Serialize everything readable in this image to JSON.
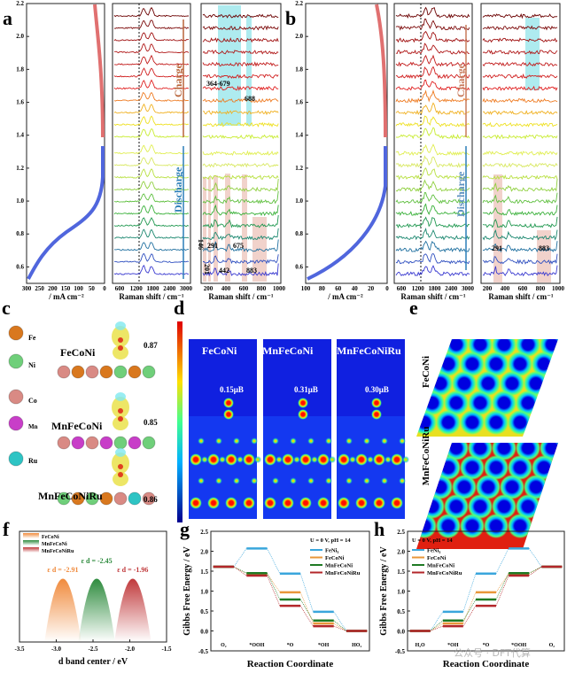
{
  "panels": {
    "a": {
      "label": "a",
      "current_ticks": [
        "300",
        "250",
        "200",
        "150",
        "100",
        "50",
        "0"
      ],
      "current_label": "/ mA cm⁻²",
      "raman1_ticks": [
        "600",
        "1200",
        "1800",
        "2400",
        "3000"
      ],
      "raman2_ticks": [
        "200",
        "400",
        "600",
        "800",
        "1000"
      ],
      "raman_label": "Raman shift / cm⁻¹",
      "charge": "Charge",
      "discharge": "Discharge",
      "peaks": [
        "364-679",
        "688",
        "146",
        "291",
        "675",
        "201",
        "442",
        "883"
      ]
    },
    "b": {
      "label": "b",
      "current_ticks": [
        "100",
        "80",
        "60",
        "40",
        "20",
        "0"
      ],
      "current_label": "/ mA cm⁻²",
      "raman1_ticks": [
        "600",
        "1200",
        "1800",
        "2400",
        "3000"
      ],
      "raman2_ticks": [
        "200",
        "400",
        "600",
        "800",
        "1000"
      ],
      "raman_label": "Raman shift / cm⁻¹",
      "charge": "Charge",
      "discharge": "Discharge",
      "peaks": [
        "291",
        "883"
      ]
    },
    "voltage_ticks": [
      "2.2",
      "2.0",
      "1.8",
      "1.6",
      "1.4",
      "1.2",
      "1.0",
      "0.8",
      "0.6"
    ],
    "c": {
      "label": "c",
      "legend": [
        "Fe",
        "Ni",
        "Co",
        "Mn",
        "Ru"
      ],
      "legend_colors": [
        "#d9781e",
        "#6fcf7a",
        "#d98a84",
        "#c83ec8",
        "#2ec4c4"
      ],
      "structures": [
        {
          "name": "FeCoNi",
          "value": "0.87"
        },
        {
          "name": "MnFeCoNi",
          "value": "0.85"
        },
        {
          "name": "MnFeCoNiRu",
          "value": "0.86"
        }
      ]
    },
    "d": {
      "label": "d",
      "maps": [
        {
          "name": "FeCoNi",
          "moment": "0.15μB"
        },
        {
          "name": "MnFeCoNi",
          "moment": "0.31μB"
        },
        {
          "name": "MnFeCoNiRu",
          "moment": "0.30μB"
        }
      ]
    },
    "e": {
      "label": "e",
      "maps": [
        "FeCoNi",
        "MnFeCoNiRu"
      ]
    }
  },
  "chart_data": [
    {
      "panel": "f",
      "label": "f",
      "type": "area",
      "xlabel": "d band center / eV",
      "xlim": [
        -3.5,
        -1.5
      ],
      "xticks": [
        "-3.5",
        "-3.0",
        "-2.5",
        "-2.0",
        "-1.5"
      ],
      "series": [
        {
          "name": "FeCoNi",
          "center": -2.91,
          "annotation": "ε d = -2.91",
          "color": "#f08a3c"
        },
        {
          "name": "MnFeCoNi",
          "center": -2.45,
          "annotation": "ε d = -2.45",
          "color": "#2e8b3e"
        },
        {
          "name": "MnFeCoNiRu",
          "center": -1.96,
          "annotation": "ε d = -1.96",
          "color": "#c0393b"
        }
      ],
      "legend": "top-left"
    },
    {
      "panel": "g",
      "label": "g",
      "type": "line",
      "title": "U = 0 V, pH = 14",
      "xlabel": "Reaction Coordinate",
      "ylabel": "Gibbs Free Energy / eV",
      "ylim": [
        -0.5,
        2.5
      ],
      "yticks": [
        "2.5",
        "2.0",
        "1.5",
        "1.0",
        "0.5",
        "0.0",
        "-0.5"
      ],
      "categories": [
        "O₂",
        "*OOH",
        "*O",
        "*OH",
        "HO₂"
      ],
      "series": [
        {
          "name": "FeNi₃",
          "values": [
            1.61,
            2.07,
            1.44,
            0.48,
            0
          ],
          "color": "#3aa6dc"
        },
        {
          "name": "FeCoNi",
          "values": [
            1.61,
            1.44,
            0.97,
            0.19,
            0
          ],
          "color": "#e8973a"
        },
        {
          "name": "MnFeCoNi",
          "values": [
            1.61,
            1.45,
            0.79,
            0.26,
            0
          ],
          "color": "#1f7a24"
        },
        {
          "name": "MnFeCoNiRu",
          "values": [
            1.61,
            1.39,
            0.63,
            0.12,
            0
          ],
          "color": "#b3262a"
        }
      ],
      "legend": "top-right"
    },
    {
      "panel": "h",
      "label": "h",
      "type": "line",
      "title": "U = 0 V, pH = 14",
      "xlabel": "Reaction Coordinate",
      "ylabel": "Gibbs Free Energy / eV",
      "ylim": [
        -0.5,
        2.5
      ],
      "yticks": [
        "2.5",
        "2.0",
        "1.5",
        "1.0",
        "0.5",
        "0.0",
        "-0.5"
      ],
      "categories": [
        "H₂O",
        "*OH",
        "*O",
        "*OOH",
        "O₂"
      ],
      "series": [
        {
          "name": "FeNi₃",
          "values": [
            0,
            0.48,
            1.44,
            2.07,
            1.61
          ],
          "color": "#3aa6dc"
        },
        {
          "name": "FeCoNi",
          "values": [
            0,
            0.19,
            0.97,
            1.44,
            1.61
          ],
          "color": "#e8973a"
        },
        {
          "name": "MnFeCoNi",
          "values": [
            0,
            0.26,
            0.79,
            1.45,
            1.61
          ],
          "color": "#1f7a24"
        },
        {
          "name": "MnFeCoNiRu",
          "values": [
            0,
            0.12,
            0.63,
            1.39,
            1.61
          ],
          "color": "#b3262a"
        }
      ],
      "legend": "top-left"
    }
  ],
  "watermark": "公众号 · DFT代算"
}
